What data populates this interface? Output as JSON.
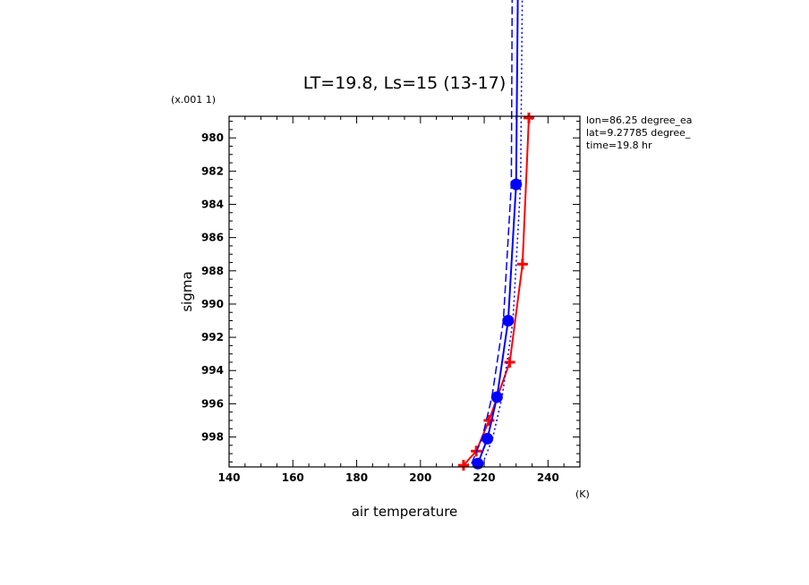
{
  "chart_data": {
    "type": "line",
    "title": "LT=19.8, Ls=15 (13-17)",
    "xlabel": "air temperature",
    "xunit": "(K)",
    "ylabel": "sigma",
    "yscale_note": "(x.001 1)",
    "xlim": [
      140,
      250
    ],
    "ylim": [
      999.8,
      978.7
    ],
    "xticks": [
      140,
      160,
      180,
      200,
      220,
      240
    ],
    "yticks": [
      980,
      982,
      984,
      986,
      988,
      990,
      992,
      994,
      996,
      998
    ],
    "info": [
      "lon=86.25 degree_ea",
      "lat=9.27785 degree_",
      "time=19.8 hr"
    ],
    "series": [
      {
        "color": "#ff0000",
        "marker": "plus",
        "points": [
          [
            213.5,
            999.7
          ],
          [
            217.5,
            998.85
          ],
          [
            221.5,
            997.0
          ],
          [
            228.0,
            993.5
          ],
          [
            232.0,
            987.6
          ],
          [
            234.0,
            978.8
          ]
        ]
      },
      {
        "color": "#0000ff",
        "marker": "circle",
        "points": [
          [
            218.0,
            999.6
          ],
          [
            221.0,
            998.1
          ],
          [
            224.0,
            995.6
          ],
          [
            227.5,
            991.0
          ],
          [
            230.0,
            982.8
          ],
          [
            230.6,
            970.0
          ]
        ]
      },
      {
        "color": "#0000ff",
        "marker": "none",
        "dash": "9,4",
        "points": [
          [
            216.0,
            999.6
          ],
          [
            219.3,
            998.1
          ],
          [
            222.4,
            995.6
          ],
          [
            226.0,
            991.0
          ],
          [
            228.5,
            982.8
          ],
          [
            228.8,
            970.0
          ]
        ]
      },
      {
        "color": "#0000ff",
        "marker": "none",
        "dash": "2,3",
        "points": [
          [
            219.5,
            999.6
          ],
          [
            222.6,
            998.1
          ],
          [
            225.6,
            995.6
          ],
          [
            229.0,
            991.0
          ],
          [
            231.4,
            982.8
          ],
          [
            232.0,
            970.0
          ]
        ]
      }
    ]
  }
}
